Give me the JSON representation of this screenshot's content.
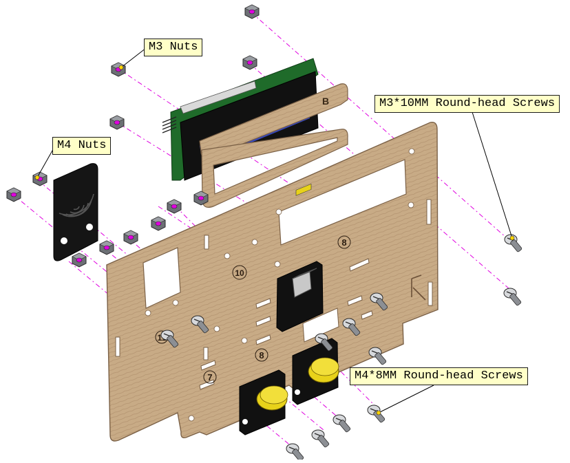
{
  "labels": {
    "m3_nuts": "M3 Nuts",
    "m4_nuts": "M4 Nuts",
    "m3_screws": "M3*10MM Round-head Screws",
    "m4_screws": "M4*8MM Round-head Screws"
  },
  "panel_numbers": {
    "n8a": "8",
    "n10": "10",
    "n11": "11",
    "n8b": "8",
    "n7": "7"
  },
  "frame_letter": "B",
  "panel_letter": "K",
  "colors": {
    "wood": "#c8ab86",
    "wood_edge": "#7a6046",
    "pcb_green": "#1f6b2a",
    "lcd_blue": "#3747b8",
    "axis_magenta": "#e000e0",
    "button_yellow": "#e8d21a",
    "callout_fill": "#ffffc8"
  }
}
